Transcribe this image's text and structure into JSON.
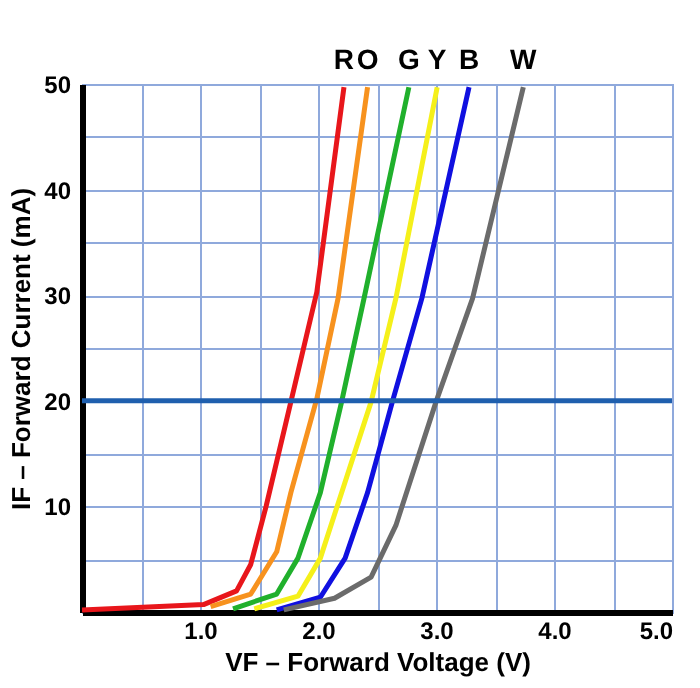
{
  "chart_data": {
    "type": "line",
    "xlabel": "VF – Forward Voltage (V)",
    "ylabel": "IF – Forward Current (mA)",
    "xlim": [
      0,
      5
    ],
    "ylim": [
      0,
      50
    ],
    "xticks": [
      {
        "value": 0.5,
        "label": null
      },
      {
        "value": 1,
        "label": "1.0"
      },
      {
        "value": 1.5,
        "label": null
      },
      {
        "value": 2,
        "label": "2.0"
      },
      {
        "value": 2.5,
        "label": null
      },
      {
        "value": 3,
        "label": "3.0"
      },
      {
        "value": 3.5,
        "label": null
      },
      {
        "value": 4,
        "label": "4.0"
      },
      {
        "value": 4.5,
        "label": null
      },
      {
        "value": 5,
        "label": "5.0"
      }
    ],
    "yticks": [
      {
        "value": 5,
        "label": null
      },
      10,
      {
        "value": 15,
        "label": null
      },
      20,
      {
        "value": 25,
        "label": null
      },
      30,
      {
        "value": 35,
        "label": null
      },
      40,
      {
        "value": 45,
        "label": null
      },
      50
    ],
    "grid": true,
    "legend": false,
    "marker": "none",
    "line_style": "solid",
    "ref_lines": [
      {
        "axis": "y",
        "value": 20,
        "color": "#1f5fae"
      }
    ],
    "series": [
      {
        "name": "R",
        "color": "#e8161b",
        "x": [
          0,
          1.03,
          1.31,
          1.43,
          1.56,
          1.77,
          1.99,
          2.22
        ],
        "values": [
          0.2,
          0.7,
          2.0,
          4.5,
          10,
          19.9,
          30.3,
          49.7
        ]
      },
      {
        "name": "O",
        "color": "#f7921e",
        "x": [
          1.09,
          1.43,
          1.65,
          1.77,
          1.99,
          2.17,
          2.42
        ],
        "values": [
          0.5,
          1.7,
          5.7,
          11.3,
          20.2,
          29.7,
          49.7
        ]
      },
      {
        "name": "G",
        "color": "#20b02c",
        "x": [
          1.28,
          1.65,
          1.83,
          2.02,
          2.2,
          2.39,
          2.77
        ],
        "values": [
          0.3,
          1.7,
          5.1,
          11.3,
          19.9,
          29.7,
          49.7
        ]
      },
      {
        "name": "Y",
        "color": "#f5f01a",
        "x": [
          1.46,
          1.83,
          2.02,
          2.2,
          2.45,
          2.66,
          3.01
        ],
        "values": [
          0.3,
          1.5,
          5.1,
          11.3,
          19.9,
          29.7,
          49.7
        ]
      },
      {
        "name": "B",
        "color": "#1010e0",
        "x": [
          1.65,
          2.02,
          2.23,
          2.42,
          2.63,
          2.88,
          3.28
        ],
        "values": [
          0.2,
          1.4,
          5.1,
          11.3,
          19.9,
          29.7,
          49.7
        ]
      },
      {
        "name": "W",
        "color": "#6b6b6b",
        "x": [
          1.71,
          2.14,
          2.45,
          2.66,
          3.0,
          3.31,
          3.74
        ],
        "values": [
          0.2,
          1.3,
          3.3,
          8.2,
          19.9,
          29.7,
          49.7
        ]
      }
    ]
  }
}
